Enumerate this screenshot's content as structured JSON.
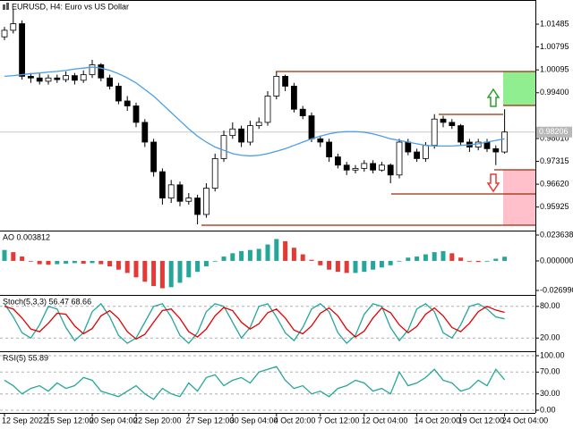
{
  "chart_data": [
    {
      "type": "candlestick",
      "title": "EURUSD, H4:  Euro vs US Dollar",
      "open": [
        1.011,
        1.013,
        1.015,
        0.999,
        0.9985,
        0.9975,
        0.9985,
        0.998,
        0.9992,
        0.9978,
        0.9995,
        1.0025,
        0.9985,
        0.996,
        0.9915,
        0.99,
        0.985,
        0.979,
        0.97,
        0.962,
        0.966,
        0.961,
        0.962,
        0.957,
        0.965,
        0.974,
        0.981,
        0.983,
        0.979,
        0.984,
        0.985,
        0.993,
        0.999,
        0.996,
        0.989,
        0.987,
        0.98,
        0.979,
        0.9745,
        0.972,
        0.9705,
        0.971,
        0.9725,
        0.9705,
        0.972,
        0.969,
        0.979,
        0.976,
        0.974,
        0.978,
        0.986,
        0.985,
        0.984,
        0.979,
        0.9775,
        0.979,
        0.977,
        0.976
      ],
      "high": [
        1.014,
        1.0195,
        1.016,
        1.0,
        0.9998,
        0.9995,
        0.9995,
        1.0005,
        1.0,
        1.0008,
        1.004,
        1.003,
        0.9995,
        0.997,
        0.993,
        0.991,
        0.986,
        0.98,
        0.971,
        0.9675,
        0.967,
        0.9635,
        0.963,
        0.9665,
        0.9755,
        0.9825,
        0.985,
        0.984,
        0.9855,
        0.9865,
        0.9945,
        1.0003,
        0.9995,
        0.997,
        0.99,
        0.988,
        0.981,
        0.98,
        0.9755,
        0.973,
        0.972,
        0.9735,
        0.9735,
        0.973,
        0.9725,
        0.98,
        0.98,
        0.977,
        0.979,
        0.9875,
        0.987,
        0.986,
        0.9845,
        0.98,
        0.98,
        0.98,
        0.978,
        0.989
      ],
      "low": [
        1.01,
        1.012,
        0.998,
        0.997,
        0.9965,
        0.9965,
        0.997,
        0.9972,
        0.9965,
        0.997,
        0.9985,
        0.9975,
        0.995,
        0.9905,
        0.9885,
        0.9835,
        0.9775,
        0.9685,
        0.96,
        0.9605,
        0.9595,
        0.96,
        0.954,
        0.956,
        0.964,
        0.973,
        0.98,
        0.9775,
        0.978,
        0.983,
        0.984,
        0.992,
        0.9945,
        0.988,
        0.986,
        0.979,
        0.9775,
        0.973,
        0.971,
        0.969,
        0.9695,
        0.97,
        0.9695,
        0.97,
        0.9665,
        0.968,
        0.975,
        0.973,
        0.973,
        0.977,
        0.9835,
        0.983,
        0.978,
        0.976,
        0.9765,
        0.976,
        0.972,
        0.9755
      ],
      "close": [
        1.013,
        1.015,
        0.999,
        0.9985,
        0.9975,
        0.9985,
        0.998,
        0.9992,
        0.9978,
        0.9995,
        1.0025,
        0.9985,
        0.996,
        0.9915,
        0.99,
        0.985,
        0.979,
        0.97,
        0.962,
        0.966,
        0.961,
        0.962,
        0.957,
        0.965,
        0.974,
        0.981,
        0.983,
        0.979,
        0.984,
        0.985,
        0.993,
        0.999,
        0.996,
        0.989,
        0.987,
        0.98,
        0.979,
        0.9745,
        0.972,
        0.9705,
        0.971,
        0.9725,
        0.9705,
        0.972,
        0.969,
        0.979,
        0.976,
        0.974,
        0.978,
        0.986,
        0.985,
        0.984,
        0.979,
        0.9775,
        0.979,
        0.977,
        0.976,
        0.98206
      ],
      "line": {
        "color": "#4a9ee8",
        "values": [
          0.999,
          0.9992,
          0.9995,
          0.9998,
          1.0,
          1.0003,
          1.0005,
          1.0008,
          1.0012,
          1.0015,
          1.0018,
          1.0015,
          1.0008,
          0.9998,
          0.9985,
          0.997,
          0.995,
          0.993,
          0.9905,
          0.988,
          0.9855,
          0.983,
          0.9808,
          0.979,
          0.9775,
          0.9765,
          0.9755,
          0.975,
          0.9748,
          0.975,
          0.9755,
          0.9762,
          0.977,
          0.978,
          0.979,
          0.98,
          0.9808,
          0.9815,
          0.982,
          0.9822,
          0.9822,
          0.982,
          0.9815,
          0.9808,
          0.98,
          0.9795,
          0.979,
          0.9785,
          0.978,
          0.9778,
          0.9778,
          0.9778,
          0.978,
          0.9782,
          0.9785,
          0.979,
          0.9795,
          0.98
        ]
      },
      "up_color": "#ffffff",
      "down_color": "#000000",
      "current_price": 0.98206,
      "ylim": [
        0.9521,
        1.0222
      ],
      "yticks": [
        1.01485,
        1.00795,
        1.00095,
        {
          "value": 0.994,
          "label": "0.99400"
        },
        {
          "value": 0.9801,
          "label": "0.98010"
        },
        0.97315,
        {
          "value": 0.9662,
          "label": "0.96620"
        },
        0.95925
      ],
      "grid": false
    },
    {
      "type": "bar",
      "title": "AO 0.003812",
      "values": [
        0.01,
        0.008,
        0.004,
        0.0,
        -0.003,
        -0.0035,
        -0.003,
        -0.0025,
        -0.002,
        -0.0025,
        -0.002,
        -0.003,
        -0.005,
        -0.008,
        -0.011,
        -0.015,
        -0.019,
        -0.023,
        -0.025,
        -0.024,
        -0.02,
        -0.015,
        -0.01,
        -0.005,
        0.0,
        0.004,
        0.007,
        0.009,
        0.01,
        0.011,
        0.015,
        0.02,
        0.018,
        0.012,
        0.006,
        0.001,
        -0.004,
        -0.008,
        -0.01,
        -0.011,
        -0.011,
        -0.01,
        -0.008,
        -0.006,
        -0.004,
        0.0,
        0.003,
        0.004,
        0.006,
        0.008,
        0.009,
        0.007,
        0.003,
        0.0,
        -0.001,
        0.0,
        0.002,
        0.003812
      ],
      "up_color": "#26a69a",
      "down_color": "#e53935",
      "ylim": [
        -0.0311,
        0.0277
      ],
      "yticks": [
        0.023638,
        {
          "value": 0,
          "label": "0.000000"
        },
        {
          "value": -0.02699,
          "label": "-0.026990"
        }
      ],
      "grid": false
    },
    {
      "type": "line",
      "title": "Stoch(5,3,3) 56.47 68.66",
      "series": [
        {
          "color": "#26a69a",
          "values": [
            85,
            60,
            30,
            20,
            45,
            80,
            75,
            40,
            15,
            30,
            70,
            85,
            60,
            25,
            10,
            20,
            50,
            80,
            85,
            60,
            25,
            10,
            30,
            70,
            85,
            80,
            50,
            20,
            40,
            80,
            85,
            60,
            30,
            15,
            40,
            75,
            85,
            70,
            30,
            10,
            25,
            65,
            85,
            80,
            40,
            15,
            35,
            75,
            85,
            70,
            30,
            20,
            45,
            80,
            85,
            75,
            60,
            56.47
          ]
        },
        {
          "color": "#e00000",
          "values": [
            80,
            75,
            58,
            37,
            32,
            48,
            67,
            65,
            43,
            28,
            38,
            62,
            72,
            57,
            32,
            18,
            27,
            50,
            72,
            75,
            57,
            32,
            22,
            37,
            62,
            78,
            72,
            50,
            37,
            47,
            68,
            75,
            58,
            35,
            28,
            43,
            67,
            77,
            62,
            37,
            22,
            33,
            58,
            77,
            68,
            45,
            30,
            42,
            65,
            77,
            62,
            40,
            32,
            48,
            70,
            80,
            73,
            68.66
          ]
        }
      ],
      "ylim": [
        0,
        100
      ],
      "yticks": [
        {
          "value": 80,
          "label": "80.00"
        },
        {
          "value": 20,
          "label": "20.00"
        }
      ],
      "grid": true
    },
    {
      "type": "line",
      "title": "RSI(5) 55.89",
      "series": [
        {
          "color": "#26a69a",
          "values": [
            55,
            45,
            30,
            40,
            45,
            35,
            50,
            40,
            45,
            60,
            55,
            35,
            30,
            25,
            35,
            45,
            30,
            20,
            40,
            30,
            25,
            50,
            35,
            60,
            65,
            45,
            55,
            60,
            50,
            70,
            75,
            80,
            55,
            40,
            45,
            30,
            35,
            25,
            40,
            45,
            55,
            50,
            35,
            40,
            30,
            70,
            45,
            50,
            60,
            75,
            55,
            50,
            35,
            40,
            55,
            45,
            75,
            55.89
          ]
        }
      ],
      "categories": [
        "12 Sep 2022",
        null,
        null,
        null,
        null,
        "15 Sep 12:00",
        null,
        null,
        null,
        null,
        "20 Sep 04:00",
        null,
        null,
        null,
        null,
        "22 Sep 20:00",
        null,
        null,
        null,
        null,
        null,
        "27 Sep 12:00",
        null,
        null,
        null,
        null,
        "30 Sep 04:00",
        null,
        null,
        null,
        null,
        "4 Oct 20:00",
        null,
        null,
        null,
        null,
        "7 Oct 12:00",
        null,
        null,
        null,
        null,
        "12 Oct 04:00",
        null,
        null,
        null,
        null,
        null,
        "14 Oct 20:00",
        null,
        null,
        null,
        null,
        "19 Oct 12:00",
        null,
        null,
        null,
        null,
        "24 Oct 04:00"
      ],
      "ylim": [
        0,
        100
      ],
      "yticks": [
        {
          "value": 100,
          "label": "100.00"
        },
        {
          "value": 70,
          "label": "70.00"
        },
        {
          "value": 30,
          "label": "30.00"
        },
        {
          "value": 0,
          "label": "0.00"
        }
      ],
      "grid": true
    }
  ]
}
